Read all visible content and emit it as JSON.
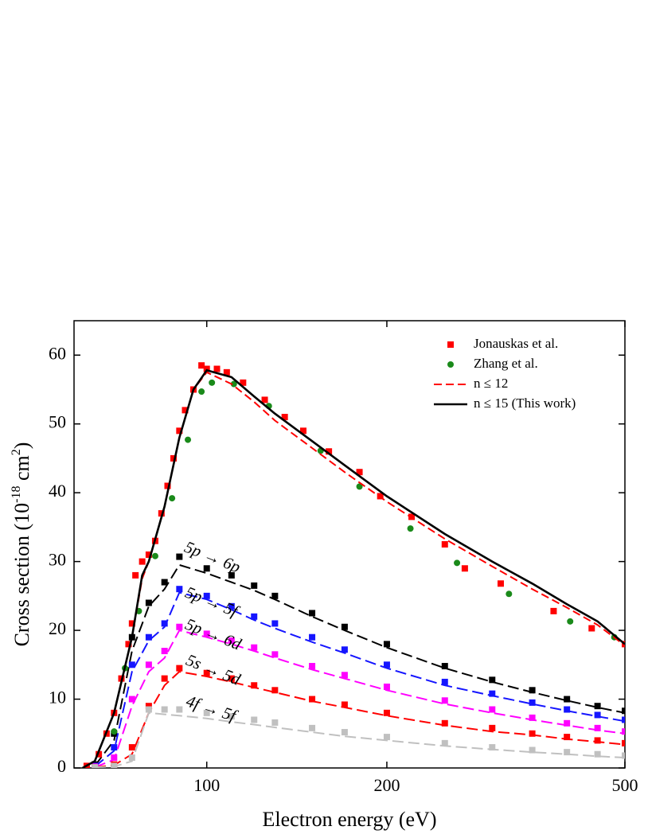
{
  "chart_data": {
    "type": "scatter-line",
    "x_label": "Electron energy (eV)",
    "y_label": [
      "Cross section (10",
      "-18",
      " cm",
      "2",
      ")"
    ],
    "xlog": true,
    "xlim": [
      60,
      500
    ],
    "xticks": [
      100,
      200,
      500
    ],
    "ylim": [
      0,
      65
    ],
    "yticks": [
      0,
      10,
      20,
      30,
      40,
      50,
      60
    ],
    "legend": "upper right",
    "series": [
      {
        "name": "Jonauskas et al.",
        "color": "#ff0000",
        "marker": "square",
        "x": [
          63,
          66,
          68,
          70,
          72,
          74,
          75,
          76,
          78,
          80,
          82,
          84,
          86,
          88,
          90,
          92,
          95,
          98,
          100,
          104,
          108,
          115,
          125,
          135,
          145,
          160,
          180,
          195,
          220,
          250,
          270,
          310,
          380,
          440,
          500
        ],
        "values": [
          0.3,
          2,
          5,
          8,
          13,
          18,
          21,
          28,
          30,
          31,
          33,
          37,
          41,
          45,
          49,
          52,
          55,
          58.5,
          58,
          58,
          57.5,
          56,
          53.5,
          51,
          49,
          46,
          43,
          39.5,
          36.5,
          32.5,
          29,
          26.8,
          22.8,
          20.3,
          18
        ]
      },
      {
        "name": "Zhang et al.",
        "color": "#1a8a1a",
        "marker": "circle",
        "x": [
          70,
          73,
          77,
          82,
          87.5,
          93,
          98,
          102,
          111,
          127,
          155,
          180,
          219,
          262,
          320,
          405,
          480
        ],
        "values": [
          5.3,
          14.5,
          22.8,
          30.8,
          39.2,
          47.7,
          54.7,
          56,
          55.8,
          52.6,
          46.1,
          40.9,
          34.8,
          29.8,
          25.3,
          21.3,
          19
        ]
      },
      {
        "name": "n ≤ 12",
        "color": "#ff0000",
        "line": "dashed",
        "x": [
          62,
          65,
          70,
          75,
          78,
          80,
          85,
          90,
          95,
          100,
          110,
          120,
          130,
          150,
          170,
          200,
          250,
          300,
          350,
          400,
          450,
          500
        ],
        "values": [
          0,
          1,
          8,
          19,
          27.5,
          30,
          38,
          48,
          55,
          57.5,
          55.8,
          53.2,
          50.5,
          46.5,
          43,
          38.7,
          33.3,
          29.3,
          26,
          23.3,
          20.8,
          17.8
        ]
      },
      {
        "name": "n ≤ 15 (This work)",
        "color": "#000000",
        "line": "solid",
        "x": [
          62,
          65,
          70,
          75,
          78,
          80,
          85,
          90,
          95,
          100,
          110,
          120,
          130,
          150,
          170,
          200,
          250,
          300,
          350,
          400,
          450,
          500
        ],
        "values": [
          0,
          1,
          8,
          19,
          28,
          30,
          38,
          48,
          55,
          57.8,
          56.8,
          54,
          51.5,
          47.5,
          44,
          39.5,
          34,
          30,
          26.8,
          23.8,
          21.3,
          18
        ]
      }
    ],
    "component_x": [
      65,
      70,
      75,
      80,
      85,
      90,
      100,
      110,
      120,
      130,
      150,
      170,
      200,
      250,
      300,
      350,
      400,
      450,
      500
    ],
    "components": [
      {
        "label": "5p → 6p",
        "color": "#000000",
        "points": [
          0.5,
          5,
          19,
          24,
          27,
          30.7,
          29,
          28,
          26.5,
          25,
          22.5,
          20.5,
          18,
          14.8,
          12.8,
          11.3,
          10,
          9,
          8.3
        ],
        "line": [
          0.3,
          4,
          17,
          23.5,
          26,
          29.5,
          28.3,
          27,
          25.8,
          24.5,
          22,
          20,
          17.5,
          14.5,
          12.5,
          11,
          9.8,
          8.8,
          8
        ]
      },
      {
        "label": "5p → 5f",
        "color": "#1515ff",
        "points": [
          0.3,
          3,
          15,
          19,
          21,
          26,
          25,
          23.5,
          22,
          21,
          19,
          17.2,
          15,
          12.5,
          10.8,
          9.5,
          8.5,
          7.7,
          7
        ],
        "line": [
          0.2,
          2.5,
          14,
          18.5,
          20.5,
          25.5,
          24.5,
          23,
          21.5,
          20.3,
          18.3,
          16.7,
          14.5,
          12,
          10.5,
          9.3,
          8.3,
          7.5,
          6.8
        ]
      },
      {
        "label": "5p → 6d",
        "color": "#ff00ff",
        "points": [
          0.2,
          1.5,
          10,
          15,
          17,
          20.5,
          19.5,
          18.5,
          17.5,
          16.5,
          14.8,
          13.5,
          11.8,
          9.8,
          8.5,
          7.3,
          6.5,
          5.8,
          5.3
        ],
        "line": [
          0.1,
          1.2,
          9,
          14,
          16,
          20,
          19,
          18,
          17,
          16,
          14.3,
          13,
          11.3,
          9.3,
          8,
          7,
          6.2,
          5.5,
          5
        ]
      },
      {
        "label": "5s → 5d",
        "color": "#ff0000",
        "points": [
          0.1,
          0.5,
          3,
          9,
          13,
          14.5,
          13.8,
          13,
          12,
          11.3,
          10,
          9.2,
          8,
          6.5,
          5.8,
          5,
          4.5,
          4,
          3.6
        ],
        "line": [
          0.1,
          0.4,
          2,
          8,
          12,
          14,
          13.3,
          12.5,
          11.7,
          11,
          9.7,
          8.8,
          7.6,
          6.2,
          5.3,
          4.8,
          4.2,
          3.8,
          3.4
        ]
      },
      {
        "label": "4f → 5f",
        "color": "#c0c0c0",
        "points": [
          0.1,
          0.3,
          1.5,
          8.5,
          8.5,
          8.5,
          8,
          7.5,
          7,
          6.6,
          5.8,
          5.2,
          4.5,
          3.6,
          3,
          2.6,
          2.3,
          2,
          1.8
        ],
        "line": [
          0.1,
          0.2,
          1,
          8,
          7.8,
          7.6,
          7.2,
          6.7,
          6.3,
          5.9,
          5.2,
          4.6,
          4,
          3.2,
          2.7,
          2.3,
          2,
          1.7,
          1.5
        ]
      }
    ]
  }
}
